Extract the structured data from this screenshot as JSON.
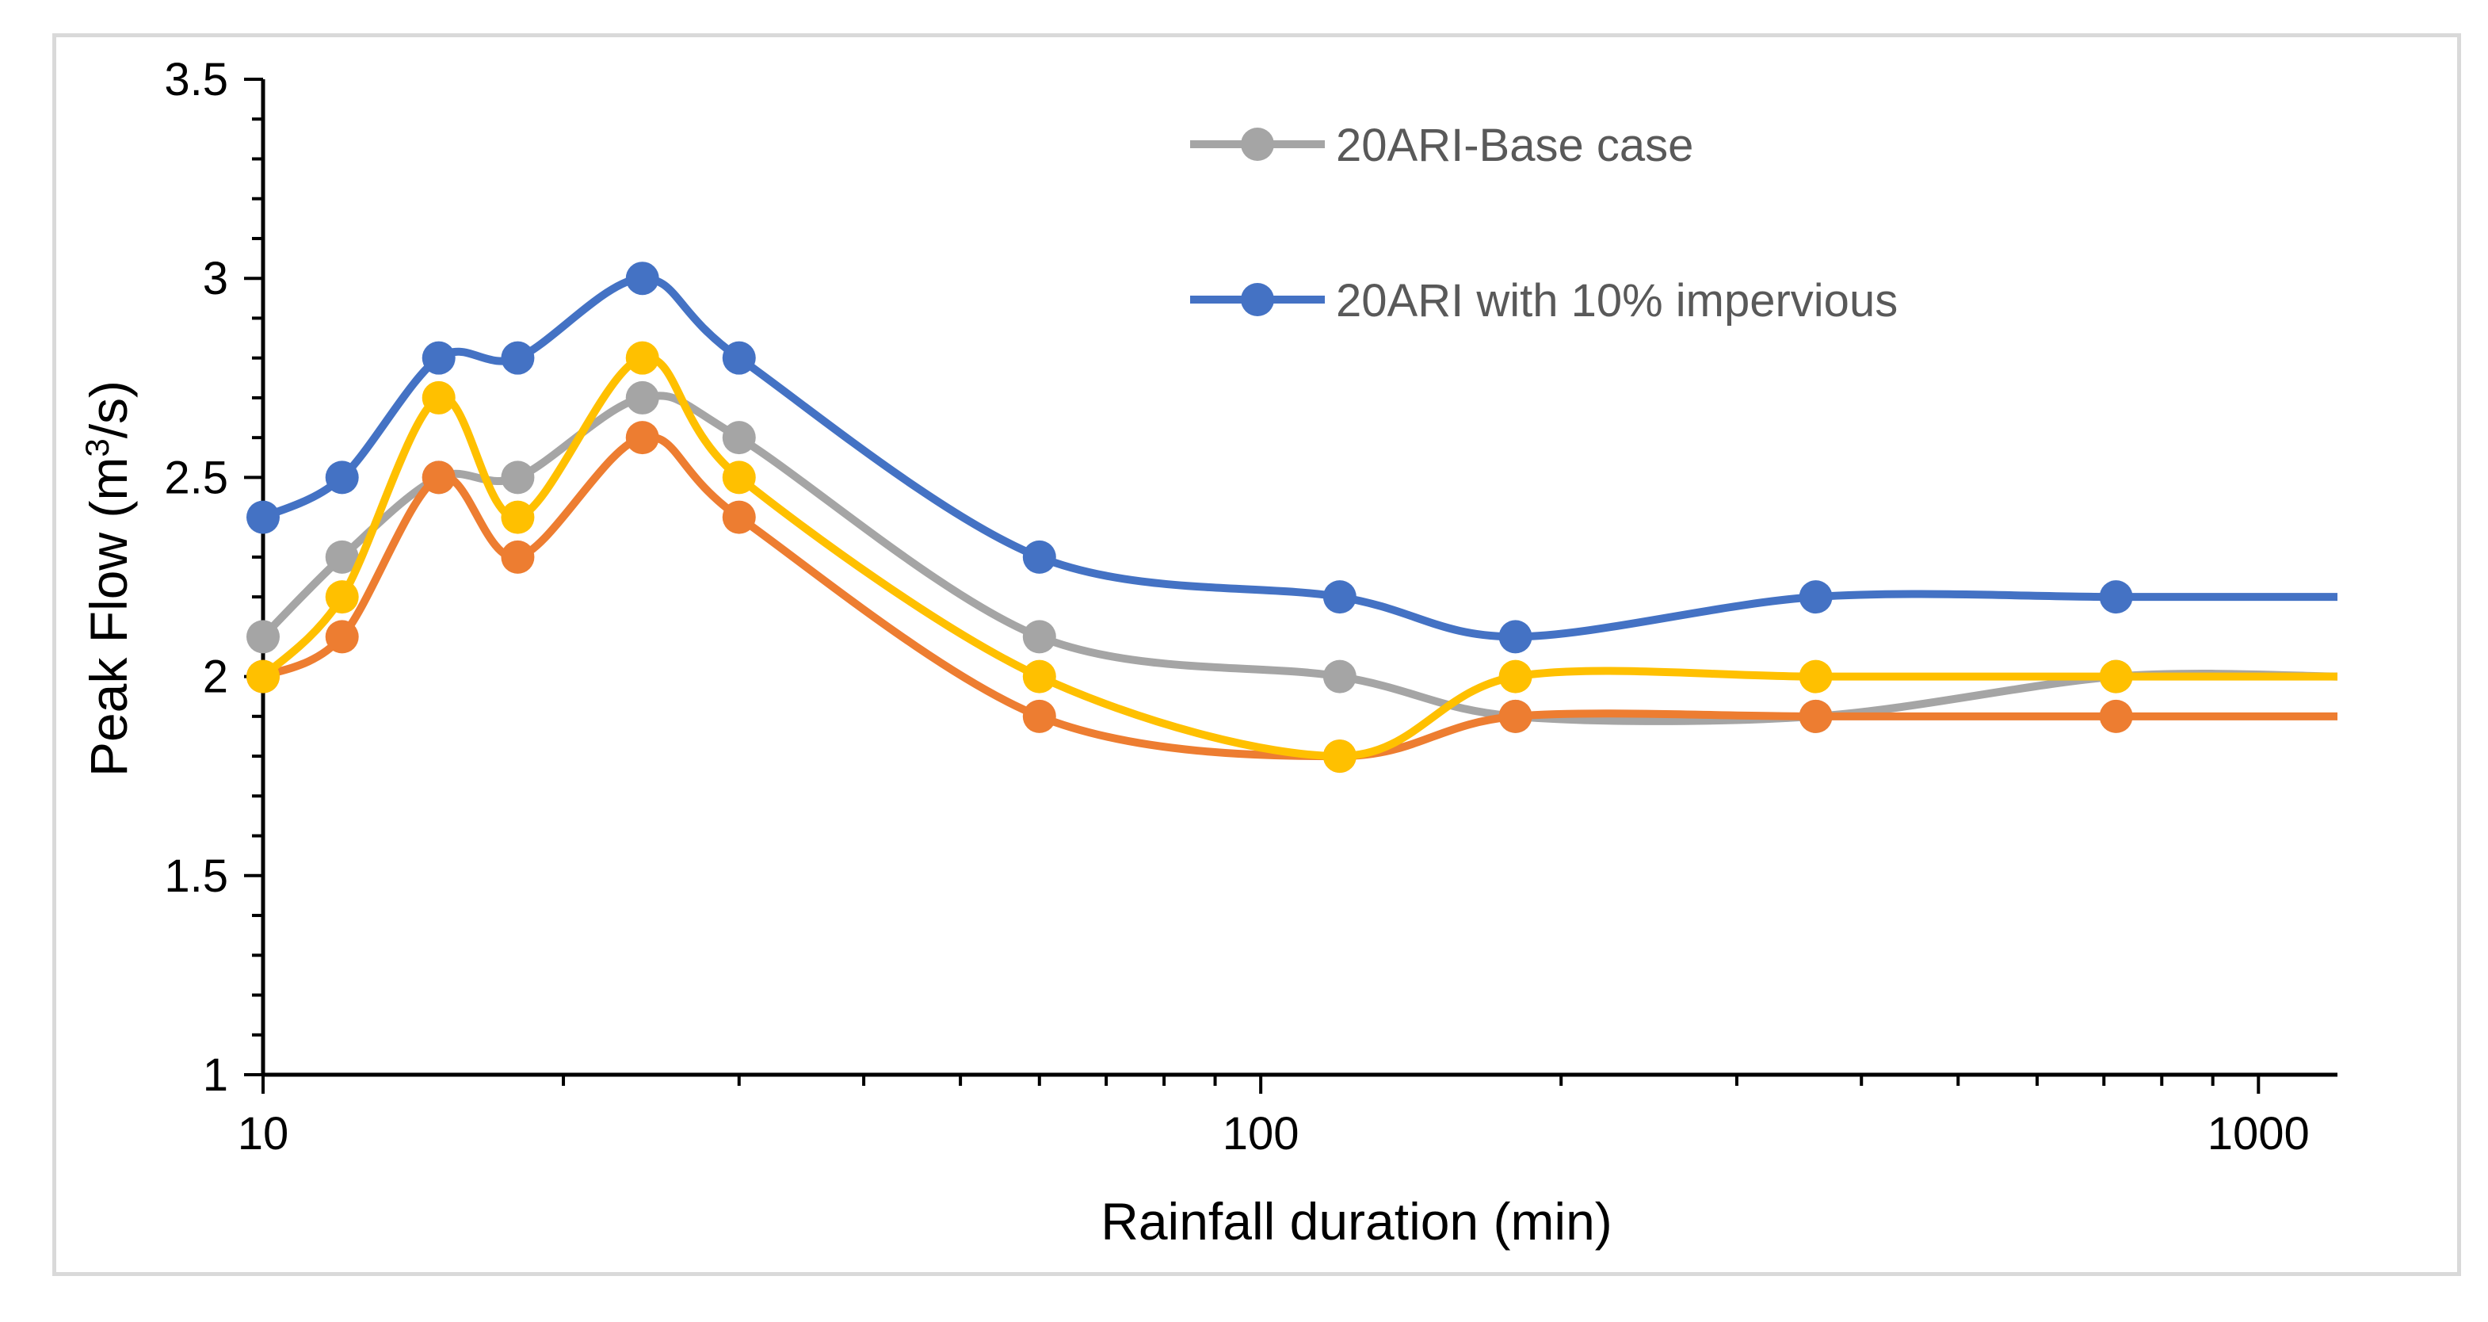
{
  "chart_data": {
    "type": "line",
    "xscale": "log",
    "xlabel": "Rainfall duration (min)",
    "ylabel": "Peak Flow (m³/s)",
    "ylabel_parts": {
      "main": "Peak Flow (m",
      "sup": "3",
      "end": "/s)"
    },
    "xlim": [
      10,
      1200
    ],
    "ylim": [
      1,
      3.5
    ],
    "x_ticks": [
      10,
      100,
      1000
    ],
    "x_tick_labels": [
      "10",
      "100",
      "1000"
    ],
    "y_ticks": [
      1,
      1.5,
      2,
      2.5,
      3,
      3.5
    ],
    "y_tick_labels": [
      "1",
      "1.5",
      "2",
      "2.5",
      "3",
      "3.5"
    ],
    "grid": false,
    "legend_position": "top-right",
    "x": [
      10,
      12,
      15,
      18,
      24,
      30,
      60,
      120,
      180,
      360,
      720
    ],
    "x_end": 1200,
    "series": [
      {
        "name": "20ARI-Base case",
        "color": "#a5a5a5",
        "in_legend": true,
        "values": [
          2.1,
          2.3,
          2.5,
          2.5,
          2.7,
          2.6,
          2.1,
          2.0,
          1.9,
          1.9,
          2.0
        ],
        "end_value": 2.0
      },
      {
        "name": "20ARI with 10% impervious",
        "color": "#4472c4",
        "in_legend": true,
        "values": [
          2.4,
          2.5,
          2.8,
          2.8,
          3.0,
          2.8,
          2.3,
          2.2,
          2.1,
          2.2,
          2.2
        ],
        "end_value": 2.2
      },
      {
        "name": "orange-series",
        "color": "#ed7d31",
        "in_legend": false,
        "values": [
          2.0,
          2.1,
          2.5,
          2.3,
          2.6,
          2.4,
          1.9,
          1.8,
          1.9,
          1.9,
          1.9
        ],
        "end_value": 1.9
      },
      {
        "name": "yellow-series",
        "color": "#ffc000",
        "in_legend": false,
        "values": [
          2.0,
          2.2,
          2.7,
          2.4,
          2.8,
          2.5,
          2.0,
          1.8,
          2.0,
          2.0,
          2.0
        ],
        "end_value": 2.0
      }
    ]
  }
}
